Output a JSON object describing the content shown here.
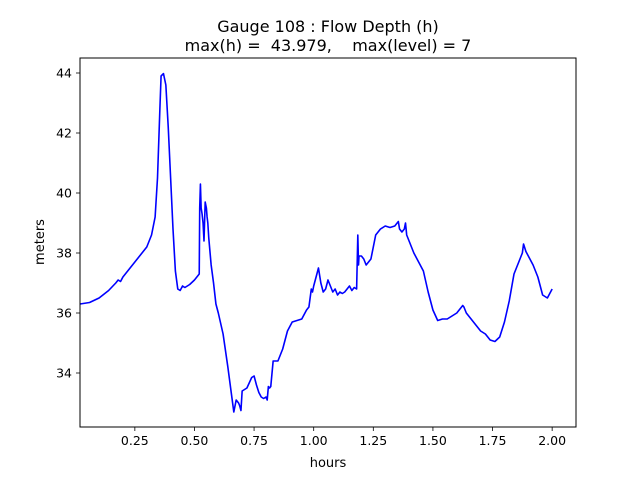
{
  "chart_data": {
    "type": "line",
    "title_line1": "Gauge 108 : Flow Depth (h)",
    "title_line2": "max(h) =  43.979,    max(level) = 7",
    "xlabel": "hours",
    "ylabel": "meters",
    "xlim": [
      0.02,
      2.1
    ],
    "ylim": [
      32.2,
      44.5
    ],
    "xticks": [
      0.25,
      0.5,
      0.75,
      1.0,
      1.25,
      1.5,
      1.75,
      2.0
    ],
    "xtick_labels": [
      "0.25",
      "0.50",
      "0.75",
      "1.00",
      "1.25",
      "1.50",
      "1.75",
      "2.00"
    ],
    "yticks": [
      34,
      36,
      38,
      40,
      42,
      44
    ],
    "ytick_labels": [
      "34",
      "36",
      "38",
      "40",
      "42",
      "44"
    ],
    "grid": false,
    "line_color": "#0000ff",
    "series": [
      {
        "x": [
          0.02,
          0.06,
          0.1,
          0.14,
          0.17,
          0.18,
          0.19,
          0.2,
          0.22,
          0.25,
          0.28,
          0.3,
          0.32,
          0.335,
          0.345,
          0.355,
          0.36,
          0.37,
          0.38,
          0.39,
          0.4,
          0.41,
          0.42,
          0.43,
          0.44,
          0.45,
          0.46,
          0.48,
          0.5,
          0.51,
          0.52,
          0.522,
          0.525,
          0.528,
          0.532,
          0.536,
          0.54,
          0.545,
          0.55,
          0.553,
          0.556,
          0.56,
          0.57,
          0.58,
          0.59,
          0.6,
          0.62,
          0.64,
          0.655,
          0.665,
          0.675,
          0.685,
          0.69,
          0.695,
          0.7,
          0.72,
          0.74,
          0.75,
          0.76,
          0.77,
          0.78,
          0.79,
          0.8,
          0.805,
          0.81,
          0.815,
          0.82,
          0.83,
          0.85,
          0.87,
          0.89,
          0.91,
          0.93,
          0.95,
          0.97,
          0.98,
          0.99,
          0.995,
          1.0,
          1.01,
          1.02,
          1.03,
          1.04,
          1.05,
          1.06,
          1.07,
          1.08,
          1.09,
          1.1,
          1.11,
          1.12,
          1.13,
          1.14,
          1.15,
          1.16,
          1.17,
          1.18,
          1.185,
          1.188,
          1.19,
          1.2,
          1.21,
          1.22,
          1.24,
          1.26,
          1.28,
          1.3,
          1.32,
          1.34,
          1.355,
          1.36,
          1.37,
          1.38,
          1.385,
          1.39,
          1.4,
          1.42,
          1.44,
          1.46,
          1.48,
          1.5,
          1.52,
          1.54,
          1.56,
          1.58,
          1.6,
          1.62,
          1.625,
          1.63,
          1.64,
          1.66,
          1.68,
          1.7,
          1.72,
          1.74,
          1.76,
          1.78,
          1.8,
          1.82,
          1.84,
          1.86,
          1.87,
          1.875,
          1.88,
          1.89,
          1.9,
          1.92,
          1.94,
          1.96,
          1.98,
          2.0
        ],
        "y": [
          36.3,
          36.35,
          36.5,
          36.75,
          37.0,
          37.1,
          37.05,
          37.2,
          37.4,
          37.7,
          38.0,
          38.2,
          38.6,
          39.2,
          40.5,
          42.8,
          43.9,
          43.98,
          43.6,
          42.2,
          40.5,
          38.8,
          37.4,
          36.8,
          36.75,
          36.9,
          36.85,
          36.95,
          37.1,
          37.2,
          37.3,
          39.5,
          40.3,
          39.5,
          39.3,
          39.0,
          38.4,
          39.7,
          39.5,
          39.2,
          39.0,
          38.5,
          37.6,
          37.0,
          36.3,
          36.0,
          35.3,
          34.2,
          33.3,
          32.7,
          33.1,
          33.0,
          32.9,
          32.75,
          33.4,
          33.5,
          33.85,
          33.9,
          33.6,
          33.35,
          33.2,
          33.15,
          33.2,
          33.1,
          33.55,
          33.5,
          33.55,
          34.4,
          34.4,
          34.8,
          35.4,
          35.7,
          35.75,
          35.8,
          36.1,
          36.2,
          36.8,
          36.7,
          36.9,
          37.2,
          37.5,
          37.0,
          36.7,
          36.8,
          37.1,
          36.9,
          36.7,
          36.8,
          36.6,
          36.7,
          36.65,
          36.7,
          36.8,
          36.9,
          36.75,
          36.85,
          36.8,
          38.6,
          37.6,
          37.9,
          37.9,
          37.8,
          37.6,
          37.8,
          38.6,
          38.8,
          38.9,
          38.85,
          38.9,
          39.05,
          38.8,
          38.7,
          38.8,
          39.0,
          38.6,
          38.4,
          38.0,
          37.7,
          37.4,
          36.7,
          36.1,
          35.75,
          35.8,
          35.8,
          35.9,
          36.0,
          36.2,
          36.25,
          36.2,
          36.0,
          35.8,
          35.6,
          35.4,
          35.3,
          35.1,
          35.05,
          35.2,
          35.7,
          36.4,
          37.3,
          37.7,
          37.9,
          38.0,
          38.3,
          38.05,
          37.9,
          37.6,
          37.2,
          36.6,
          36.5,
          36.8
        ]
      }
    ]
  }
}
